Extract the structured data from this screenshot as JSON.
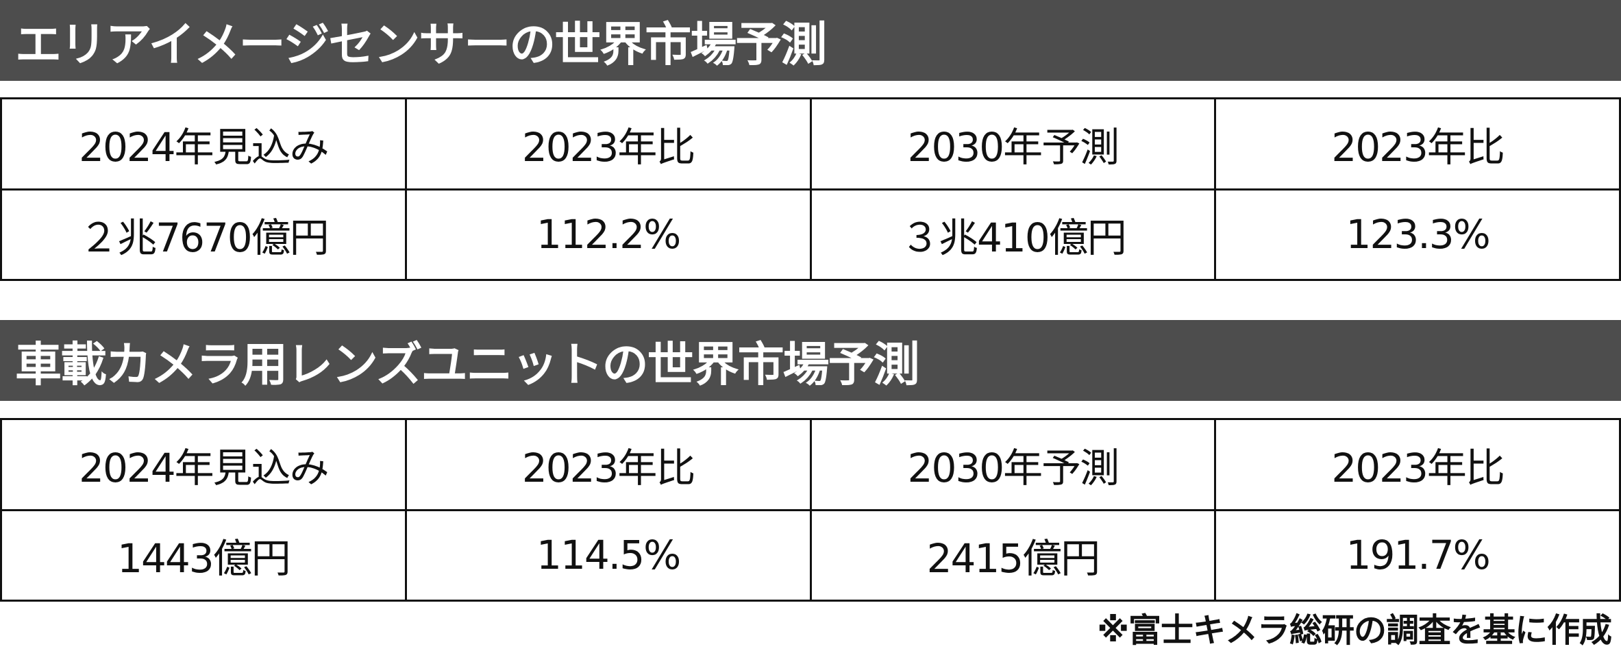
{
  "sections": [
    {
      "title": "エリアイメージセンサーの世界市場予測",
      "table": {
        "header": [
          "2024年見込み",
          "2023年比",
          "2030年予測",
          "2023年比"
        ],
        "rows": [
          [
            "２兆7670億円",
            "112.2%",
            "３兆410億円",
            "123.3%"
          ]
        ]
      }
    },
    {
      "title": "車載カメラ用レンズユニットの世界市場予測",
      "table": {
        "header": [
          "2024年見込み",
          "2023年比",
          "2030年予測",
          "2023年比"
        ],
        "rows": [
          [
            "1443億円",
            "114.5%",
            "2415億円",
            "191.7%"
          ]
        ]
      }
    }
  ],
  "footnote": "※富士キメラ総研の調査を基に作成"
}
